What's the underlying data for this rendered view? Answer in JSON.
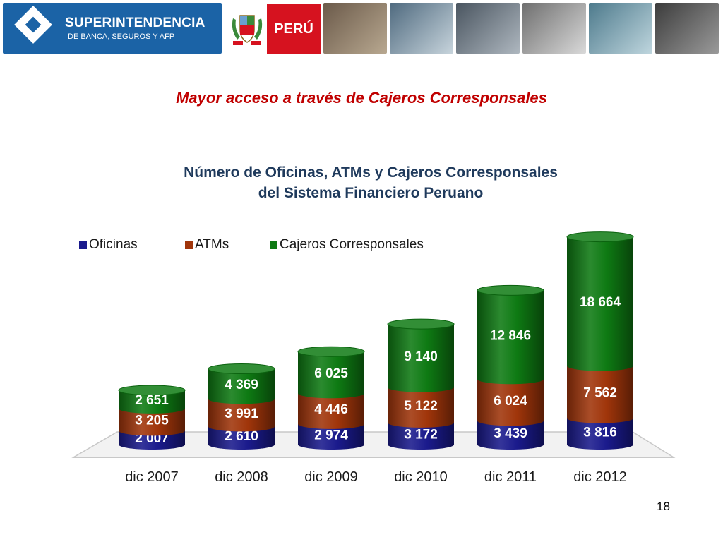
{
  "header": {
    "logo_line1": "SUPERINTENDENCIA",
    "logo_line2": "DE BANCA, SEGUROS Y AFP",
    "country": "PERÚ",
    "brand_color": "#1b63a6",
    "peru_red": "#d6121f",
    "photos": [
      "card-photo",
      "building-photo",
      "keyboard-photo",
      "desk-photo",
      "handshake-photo",
      "pos-terminal-photo"
    ]
  },
  "slide": {
    "title": "Mayor acceso a través de Cajeros Corresponsales",
    "page_number": "18"
  },
  "chart_data": {
    "type": "bar",
    "stacked": true,
    "style": "3d-cylinder",
    "title": "Número de Oficinas, ATMs y Cajeros Corresponsales",
    "subtitle": "del Sistema Financiero Peruano",
    "categories": [
      "dic 2007",
      "dic 2008",
      "dic 2009",
      "dic 2010",
      "dic 2011",
      "dic 2012"
    ],
    "series": [
      {
        "name": "Oficinas",
        "color": "#1a1a8c",
        "values": [
          2007,
          2610,
          2974,
          3172,
          3439,
          3816
        ],
        "labels": [
          "2 007",
          "2 610",
          "2 974",
          "3 172",
          "3 439",
          "3 816"
        ]
      },
      {
        "name": "ATMs",
        "color": "#a0350a",
        "values": [
          3205,
          3991,
          4446,
          5122,
          6024,
          7562
        ],
        "labels": [
          "3 205",
          "3 991",
          "4 446",
          "5 122",
          "6 024",
          "7 562"
        ]
      },
      {
        "name": "Cajeros Corresponsales",
        "color": "#0e7a13",
        "values": [
          2651,
          4369,
          6025,
          9140,
          12846,
          18664
        ],
        "labels": [
          "2 651",
          "4 369",
          "6 025",
          "9 140",
          "12 846",
          "18 664"
        ]
      }
    ],
    "legend_position": "top-left",
    "ylim": [
      0,
      32000
    ],
    "grid": false
  }
}
